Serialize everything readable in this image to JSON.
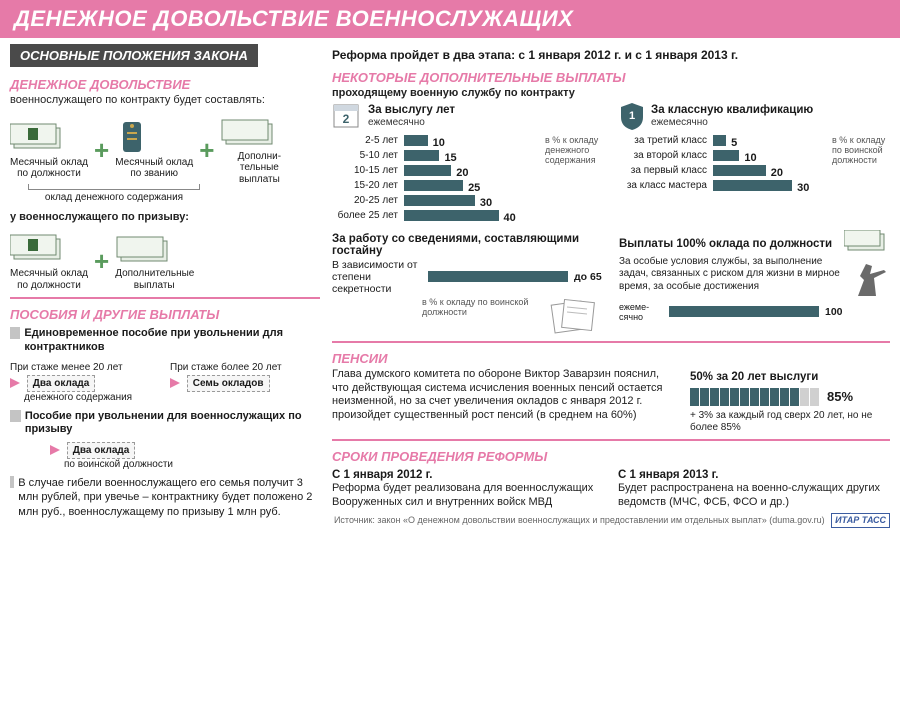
{
  "colors": {
    "pink": "#e67aa8",
    "dark_gray": "#4a4a4a",
    "bar": "#3d636b",
    "green": "#5a9b5d",
    "bg": "#ffffff"
  },
  "header": {
    "title": "ДЕНЕЖНОЕ ДОВОЛЬСТВИЕ ВОЕННОСЛУЖАЩИХ"
  },
  "left": {
    "sub_banner": "ОСНОВНЫЕ ПОЛОЖЕНИЯ ЗАКОНА",
    "s1_title": "ДЕНЕЖНОЕ ДОВОЛЬСТВИЕ",
    "s1_text": "военнослужащего по контракту будет составлять:",
    "formula1": {
      "a": "Месячный оклад по должности",
      "b": "Месячный оклад по званию",
      "c": "Дополни-\nтельные выплаты",
      "brace": "оклад денежного содержания"
    },
    "conscript_note": "у военнослужащего по призыву:",
    "formula2": {
      "a": "Месячный оклад по должности",
      "b": "Дополнительные выплаты"
    },
    "s2_title": "ПОСОБИЯ И ДРУГИЕ ВЫПЛАТЫ",
    "item1": "Единовременное пособие при увольнении для контрактников",
    "stamp": {
      "left_cond": "При стаже менее 20 лет",
      "left_val": "Два оклада",
      "left_note": "денежного содержания",
      "right_cond": "При стаже более 20 лет",
      "right_val": "Семь окладов"
    },
    "item2": "Пособие при увольнении для военнослужащих по призыву",
    "item2_val": "Два оклада",
    "item2_note": "по воинской должности",
    "item3": "В случае гибели военнослужащего его семья получит 3 млн рублей, при увечье – контрактнику будет положено 2 млн руб., военнослужащему по призыву 1 млн руб."
  },
  "right": {
    "intro": "Реформа пройдет в два этапа: с 1 января 2012 г. и с 1 января 2013 г.",
    "s1_title": "НЕКОТОРЫЕ ДОПОЛНИТЕЛЬНЫЕ ВЫПЛАТЫ",
    "s1_sub": "проходящему военную службу по контракту",
    "chart_years": {
      "title": "За выслугу лет",
      "sub": "ежемесячно",
      "percent_note": "в % к окладу денежного содержания",
      "rows": [
        {
          "label": "2-5 лет",
          "value": 10
        },
        {
          "label": "5-10 лет",
          "value": 15
        },
        {
          "label": "10-15 лет",
          "value": 20
        },
        {
          "label": "15-20 лет",
          "value": 25
        },
        {
          "label": "20-25 лет",
          "value": 30
        },
        {
          "label": "более 25 лет",
          "value": 40
        }
      ],
      "max": 40
    },
    "chart_class": {
      "title": "За классную квалификацию",
      "sub": "ежемесячно",
      "percent_note": "в % к окладу по воинской должности",
      "rows": [
        {
          "label": "за третий класс",
          "value": 5
        },
        {
          "label": "за второй класс",
          "value": 10
        },
        {
          "label": "за первый класс",
          "value": 20
        },
        {
          "label": "за класс мастера",
          "value": 30
        }
      ],
      "max": 30
    },
    "secrecy": {
      "title": "За работу со сведениями, составляющими гостайну",
      "row_label": "В зависимости от степени секретности",
      "max_label": "до 65",
      "percent_note": "в % к окладу по воинской должности"
    },
    "full_pay": {
      "title": "Выплаты 100% оклада по должности",
      "text": "За особые условия службы, за выполнение задач, связанных с риском для жизни в мирное время, за особые достижения",
      "bar_label": "ежеме-\nсячно",
      "bar_value": 100
    },
    "pensions": {
      "title": "ПЕНСИИ",
      "text": "Глава думского комитета по обороне Виктор Заварзин пояснил, что действующая система исчисления военных пенсий остается неизменной, но за счет увеличения окладов с января 2012 г. произойдет существенный рост пенсий (в среднем на 60%)",
      "right_title": "50% за 20 лет выслуги",
      "right_value": "85%",
      "right_note": "+ 3% за каждый год сверх 20 лет, но не более 85%",
      "filled_segments": 11,
      "total_segments": 13
    },
    "reform": {
      "title": "СРОКИ ПРОВЕДЕНИЯ РЕФОРМЫ",
      "col1_title": "С 1 января 2012 г.",
      "col1_text": "Реформа будет реализована для военнослужащих Вооруженных сил и внутренних войск МВД",
      "col2_title": "С 1 января 2013 г.",
      "col2_text": "Будет распространена на военно-служащих других ведомств (МЧС, ФСБ, ФСО и др.)"
    },
    "source": "Источник: закон «О денежном довольствии военнослужащих и предоставлении им отдельных выплат» (duma.gov.ru)",
    "logo": "ИТАР ТАСС"
  }
}
